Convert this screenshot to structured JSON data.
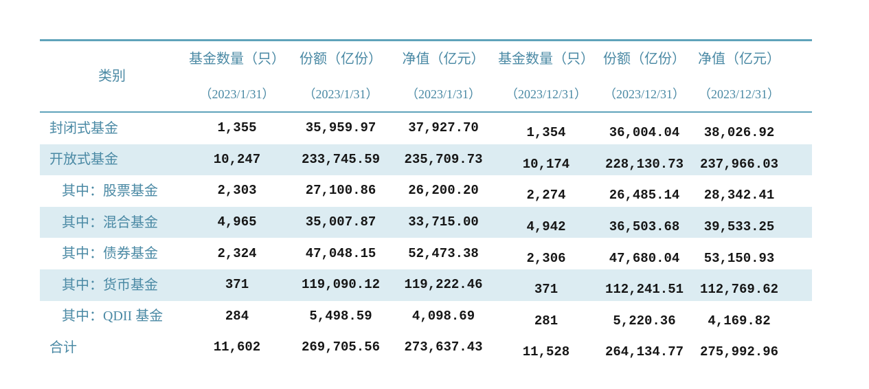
{
  "chart_data": {
    "type": "table",
    "row_header_label": "类别",
    "columns": [
      {
        "label": "基金数量（只）",
        "date": "（2023/1/31）"
      },
      {
        "label": "份额（亿份）",
        "date": "（2023/1/31）"
      },
      {
        "label": "净值（亿元）",
        "date": "（2023/1/31）"
      },
      {
        "label": "基金数量（只）",
        "date": "（2023/12/31）"
      },
      {
        "label": "份额（亿份）",
        "date": "（2023/12/31）"
      },
      {
        "label": "净值（亿元）",
        "date": "（2023/12/31）"
      }
    ],
    "rows": [
      {
        "category": "封闭式基金",
        "indent": false,
        "shaded": false,
        "values": [
          "1,355",
          "35,959.97",
          "37,927.70",
          "1,354",
          "36,004.04",
          "38,026.92"
        ]
      },
      {
        "category": "开放式基金",
        "indent": false,
        "shaded": true,
        "values": [
          "10,247",
          "233,745.59",
          "235,709.73",
          "10,174",
          "228,130.73",
          "237,966.03"
        ]
      },
      {
        "category": "其中：股票基金",
        "indent": true,
        "shaded": false,
        "values": [
          "2,303",
          "27,100.86",
          "26,200.20",
          "2,274",
          "26,485.14",
          "28,342.41"
        ]
      },
      {
        "category": "其中：混合基金",
        "indent": true,
        "shaded": true,
        "values": [
          "4,965",
          "35,007.87",
          "33,715.00",
          "4,942",
          "36,503.68",
          "39,533.25"
        ]
      },
      {
        "category": "其中：债券基金",
        "indent": true,
        "shaded": false,
        "values": [
          "2,324",
          "47,048.15",
          "52,473.38",
          "2,306",
          "47,680.04",
          "53,150.93"
        ]
      },
      {
        "category": "其中：货币基金",
        "indent": true,
        "shaded": true,
        "values": [
          "371",
          "119,090.12",
          "119,222.46",
          "371",
          "112,241.51",
          "112,769.62"
        ]
      },
      {
        "category": "其中：QDII 基金",
        "indent": true,
        "shaded": false,
        "values": [
          "284",
          "5,498.59",
          "4,098.69",
          "281",
          "5,220.36",
          "4,169.82"
        ]
      },
      {
        "category": "合计",
        "indent": false,
        "shaded": false,
        "values": [
          "11,602",
          "269,705.56",
          "273,637.43",
          "11,528",
          "264,134.77",
          "275,992.96"
        ]
      }
    ],
    "colors": {
      "accent_text": "#4a89a4",
      "border_line": "#5fa3ba",
      "row_shade": "#dcecf2",
      "number_text": "#161616"
    }
  }
}
